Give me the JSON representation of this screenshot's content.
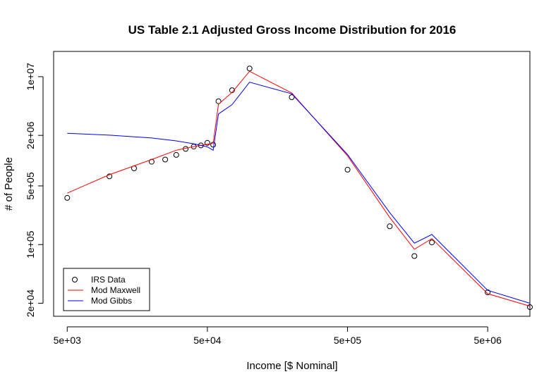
{
  "chart_data": {
    "type": "line",
    "title": "US Table 2.1 Adjusted Gross Income Distribution for 2016",
    "xlabel": "Income [$ Nominal]",
    "ylabel": "# of People",
    "x_scale": "log",
    "y_scale": "log",
    "xlim": [
      4000,
      10000000
    ],
    "ylim": [
      14000,
      20000000
    ],
    "x_ticks": [
      {
        "value": 5000,
        "label": "5e+03"
      },
      {
        "value": 50000,
        "label": "5e+04"
      },
      {
        "value": 500000,
        "label": "5e+05"
      },
      {
        "value": 5000000,
        "label": "5e+06"
      }
    ],
    "y_ticks": [
      {
        "value": 20000,
        "label": "2e+04"
      },
      {
        "value": 100000,
        "label": "1e+05"
      },
      {
        "value": 500000,
        "label": "5e+05"
      },
      {
        "value": 2000000,
        "label": "2e+06"
      },
      {
        "value": 10000000,
        "label": "1e+07"
      }
    ],
    "grid": false,
    "legend_position": "bottom-left",
    "legend": [
      "IRS Data",
      "Mod Maxwell",
      "Mod Gibbs"
    ],
    "series": [
      {
        "name": "IRS Data",
        "kind": "points",
        "color": "#000000",
        "x": [
          5000,
          10000,
          15000,
          20000,
          25000,
          30000,
          35000,
          40000,
          45000,
          50000,
          55000,
          60000,
          75000,
          100000,
          200000,
          500000,
          1000000,
          1500000,
          2000000,
          5000000,
          10000000
        ],
        "y": [
          360000,
          650000,
          810000,
          970000,
          1030000,
          1170000,
          1380000,
          1470000,
          1520000,
          1630000,
          1550000,
          5100000,
          6900000,
          12500000,
          5700000,
          780000,
          165000,
          73000,
          106000,
          27000,
          18000
        ]
      },
      {
        "name": "Mod Maxwell",
        "kind": "line",
        "color": "#ff0000",
        "x": [
          5000,
          10000,
          20000,
          30000,
          40000,
          50000,
          55000,
          60000,
          75000,
          100000,
          200000,
          500000,
          1000000,
          1500000,
          2000000,
          5000000,
          10000000
        ],
        "y": [
          410000,
          680000,
          1030000,
          1330000,
          1470000,
          1570000,
          1600000,
          4700000,
          6500000,
          11600000,
          6400000,
          1140000,
          210000,
          88000,
          118000,
          26000,
          18500
        ]
      },
      {
        "name": "Mod Gibbs",
        "kind": "line",
        "color": "#0000ff",
        "x": [
          5000,
          10000,
          20000,
          30000,
          40000,
          50000,
          55000,
          60000,
          75000,
          100000,
          200000,
          500000,
          1000000,
          1500000,
          2000000,
          5000000,
          10000000
        ],
        "y": [
          2120000,
          2010000,
          1860000,
          1720000,
          1590000,
          1460000,
          1330000,
          3600000,
          4650000,
          8600000,
          6250000,
          1180000,
          240000,
          104000,
          132000,
          28500,
          20000
        ]
      }
    ]
  }
}
